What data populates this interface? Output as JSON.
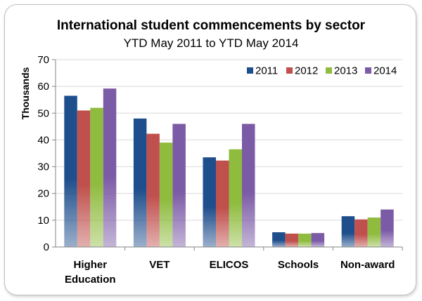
{
  "chart_data": {
    "type": "bar",
    "title": "International student commencements by sector",
    "subtitle": "YTD May 2011 to YTD May 2014",
    "xlabel": "",
    "ylabel": "Thousands",
    "ylim": [
      0,
      70
    ],
    "yticks": [
      0,
      10,
      20,
      30,
      40,
      50,
      60,
      70
    ],
    "grid": true,
    "legend_position": "top-right",
    "categories": [
      [
        "Higher",
        "Education"
      ],
      [
        "VET"
      ],
      [
        "ELICOS"
      ],
      [
        "Schools"
      ],
      [
        "Non-award"
      ]
    ],
    "series": [
      {
        "name": "2011",
        "color": "#1f4e8c",
        "values": [
          56.5,
          48,
          33.5,
          5.5,
          11.5
        ]
      },
      {
        "name": "2012",
        "color": "#c0504d",
        "values": [
          51,
          42.3,
          32.3,
          5,
          10.3
        ]
      },
      {
        "name": "2013",
        "color": "#8fbc3f",
        "values": [
          52,
          39,
          36.5,
          5,
          11
        ]
      },
      {
        "name": "2014",
        "color": "#7b5aa6",
        "values": [
          59.2,
          46,
          46,
          5.2,
          14
        ]
      }
    ]
  }
}
